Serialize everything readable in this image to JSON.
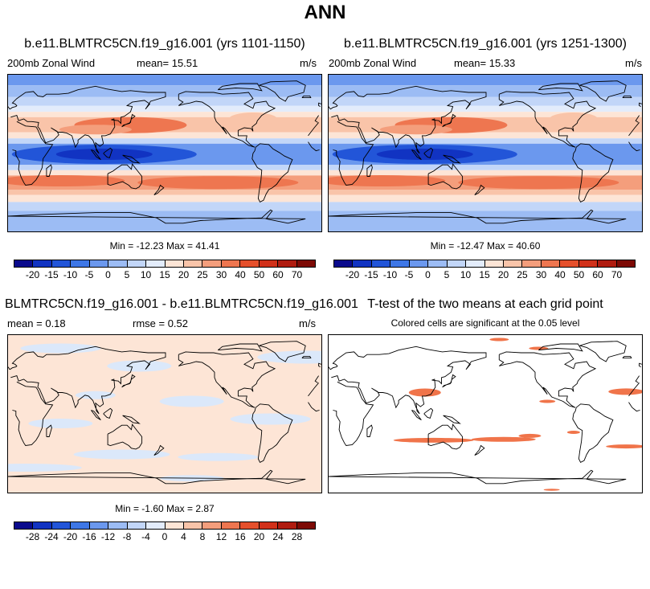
{
  "figure_title": "ANN",
  "panels": [
    {
      "title": "b.e11.BLMTRC5CN.f19_g16.001 (yrs 1101-1150)",
      "left_label": "200mb Zonal Wind",
      "center_label": "mean=  15.51",
      "right_label": "m/s",
      "minmax": "Min = -12.23 Max = 41.41"
    },
    {
      "title": "b.e11.BLMTRC5CN.f19_g16.001 (yrs 1251-1300)",
      "left_label": "200mb Zonal Wind",
      "center_label": "mean=  15.33",
      "right_label": "m/s",
      "minmax": "Min = -12.47 Max = 40.60"
    },
    {
      "title": "BLMTRC5CN.f19_g16.001 - b.e11.BLMTRC5CN.f19_g16.001",
      "left_label": "mean =   0.18",
      "center_label": "rmse =   0.52",
      "right_label": "m/s",
      "minmax": "Min =  -1.60 Max =   2.87"
    },
    {
      "title": "T-test of the two means at each grid point",
      "subtitle": "Colored cells are significant at the 0.05 level"
    }
  ],
  "colorbar_wind": {
    "labels": [
      "-20",
      "-15",
      "-10",
      "-5",
      "0",
      "5",
      "10",
      "15",
      "20",
      "25",
      "30",
      "40",
      "50",
      "60",
      "70"
    ],
    "colors": [
      "#0a0a8c",
      "#1133c2",
      "#2255d8",
      "#3e77e6",
      "#6b98ee",
      "#9cbcf4",
      "#c2d6f8",
      "#e3ecfb",
      "#fde5d6",
      "#f9c4a9",
      "#f49e7c",
      "#ee7650",
      "#e5502c",
      "#d1311a",
      "#b01c10",
      "#7d0a05"
    ]
  },
  "colorbar_diff": {
    "labels": [
      "-28",
      "-24",
      "-20",
      "-16",
      "-12",
      "-8",
      "-4",
      "0",
      "4",
      "8",
      "12",
      "16",
      "20",
      "24",
      "28"
    ],
    "colors": [
      "#0a0a8c",
      "#1133c2",
      "#2255d8",
      "#3e77e6",
      "#6b98ee",
      "#9cbcf4",
      "#c2d6f8",
      "#e3ecfb",
      "#fde5d6",
      "#f9c4a9",
      "#f49e7c",
      "#ee7650",
      "#e5502c",
      "#d1311a",
      "#b01c10",
      "#7d0a05"
    ]
  }
}
